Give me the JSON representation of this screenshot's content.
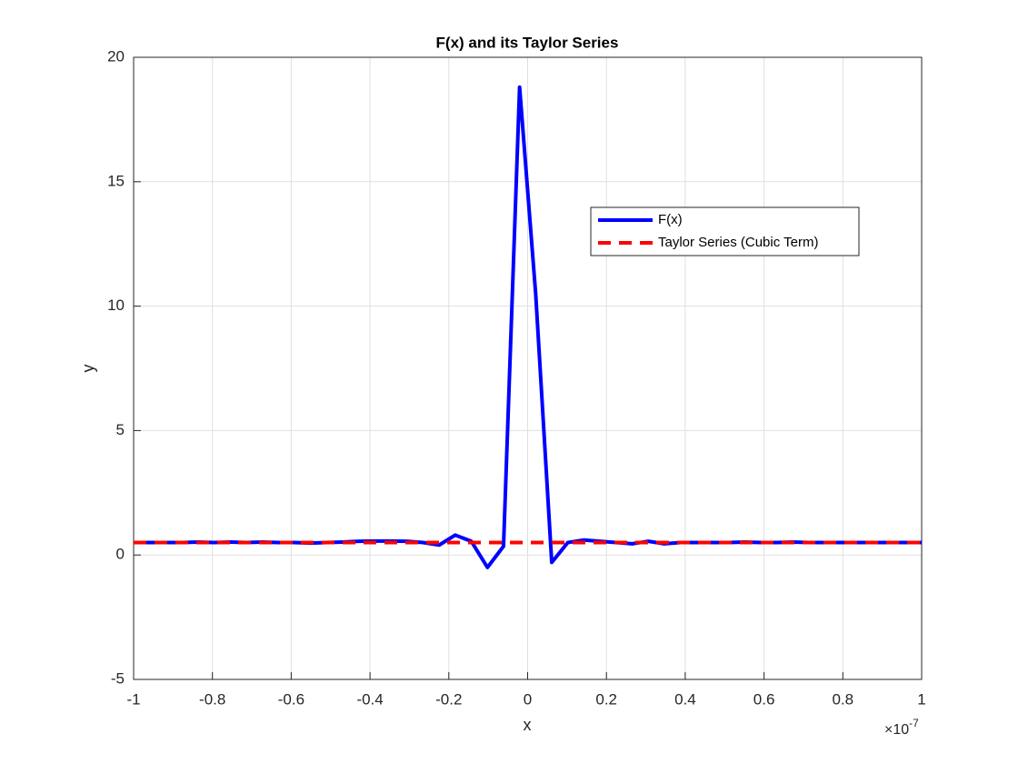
{
  "chart_data": {
    "type": "line",
    "title": "F(x) and its Taylor Series",
    "x_label": "x",
    "y_label": "y",
    "x_multiplier": {
      "base": "×10",
      "exponent": "-7"
    },
    "xlim": [
      -1,
      1
    ],
    "xticks": [
      -1,
      -0.8,
      -0.6,
      -0.4,
      -0.2,
      0,
      0.2,
      0.4,
      0.6,
      0.8,
      1
    ],
    "ylim": [
      -5,
      20
    ],
    "yticks": [
      -5,
      0,
      5,
      10,
      15,
      20
    ],
    "grid": true,
    "legend_position": "upper-right",
    "series": [
      {
        "name": "F(x)",
        "color": "#0000ff",
        "style": "solid",
        "x": [
          -1,
          -0.9592,
          -0.9184,
          -0.8776,
          -0.8367,
          -0.7959,
          -0.7551,
          -0.7143,
          -0.6735,
          -0.6327,
          -0.5918,
          -0.551,
          -0.5102,
          -0.4694,
          -0.4286,
          -0.3878,
          -0.3469,
          -0.3061,
          -0.2653,
          -0.2245,
          -0.1837,
          -0.1429,
          -0.102,
          -0.0612,
          -0.0204,
          0.0204,
          0.0612,
          0.102,
          0.1429,
          0.1837,
          0.2245,
          0.2653,
          0.3061,
          0.3469,
          0.3878,
          0.4286,
          0.4694,
          0.5102,
          0.551,
          0.5918,
          0.6327,
          0.6735,
          0.7143,
          0.7551,
          0.7959,
          0.8367,
          0.8776,
          0.9184,
          0.9592,
          1
        ],
        "values": [
          0.5,
          0.5,
          0.5,
          0.5,
          0.52,
          0.5,
          0.52,
          0.5,
          0.52,
          0.5,
          0.5,
          0.48,
          0.5,
          0.52,
          0.55,
          0.56,
          0.56,
          0.55,
          0.5,
          0.4,
          0.8,
          0.55,
          -0.5,
          0.35,
          18.8,
          10.5,
          -0.3,
          0.5,
          0.6,
          0.55,
          0.5,
          0.45,
          0.55,
          0.45,
          0.5,
          0.5,
          0.5,
          0.5,
          0.52,
          0.5,
          0.5,
          0.52,
          0.5,
          0.5,
          0.5,
          0.5,
          0.5,
          0.5,
          0.5,
          0.5
        ]
      },
      {
        "name": "Taylor Series (Cubic Term)",
        "color": "#ff0000",
        "style": "dashed",
        "x": [
          -1,
          1
        ],
        "values": [
          0.5,
          0.5
        ]
      }
    ]
  }
}
